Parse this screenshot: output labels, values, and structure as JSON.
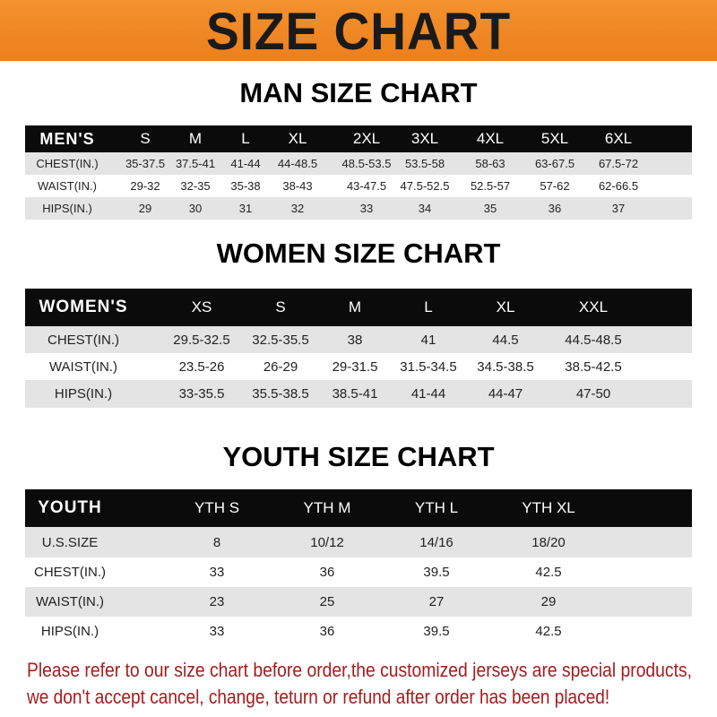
{
  "banner": {
    "title": "SIZE CHART",
    "color": "#ef8a25"
  },
  "men": {
    "title": "MAN SIZE CHART",
    "header": [
      "MEN'S",
      "S",
      "M",
      "L",
      "XL",
      "2XL",
      "3XL",
      "4XL",
      "5XL",
      "6XL"
    ],
    "rows": [
      [
        "CHEST(IN.)",
        "35-37.5",
        "37.5-41",
        "41-44",
        "44-48.5",
        "48.5-53.5",
        "53.5-58",
        "58-63",
        "63-67.5",
        "67.5-72"
      ],
      [
        "WAIST(IN.)",
        "29-32",
        "32-35",
        "35-38",
        "38-43",
        "43-47.5",
        "47.5-52.5",
        "52.5-57",
        "57-62",
        "62-66.5"
      ],
      [
        "HIPS(IN.)",
        "29",
        "30",
        "31",
        "32",
        "33",
        "34",
        "35",
        "36",
        "37"
      ]
    ]
  },
  "women": {
    "title": "WOMEN SIZE CHART",
    "header": [
      "WOMEN'S",
      "XS",
      "S",
      "M",
      "L",
      "XL",
      "XXL"
    ],
    "rows": [
      [
        "CHEST(IN.)",
        "29.5-32.5",
        "32.5-35.5",
        "38",
        "41",
        "44.5",
        "44.5-48.5"
      ],
      [
        "WAIST(IN.)",
        "23.5-26",
        "26-29",
        "29-31.5",
        "31.5-34.5",
        "34.5-38.5",
        "38.5-42.5"
      ],
      [
        "HIPS(IN.)",
        "33-35.5",
        "35.5-38.5",
        "38.5-41",
        "41-44",
        "44-47",
        "47-50"
      ]
    ]
  },
  "youth": {
    "title": "YOUTH SIZE CHART",
    "header": [
      "YOUTH",
      "YTH S",
      "YTH M",
      "YTH L",
      "YTH XL"
    ],
    "rows": [
      [
        "U.S.SIZE",
        "8",
        "10/12",
        "14/16",
        "18/20"
      ],
      [
        "CHEST(IN.)",
        "33",
        "36",
        "39.5",
        "42.5"
      ],
      [
        "WAIST(IN.)",
        "23",
        "25",
        "27",
        "29"
      ],
      [
        "HIPS(IN.)",
        "33",
        "36",
        "39.5",
        "42.5"
      ]
    ]
  },
  "notice": {
    "line1": "Please refer to our size chart before order,the customized jerseys are special products,",
    "line2": "we don't accept cancel, change, teturn or refund after order has been placed!",
    "color": "#a41d1d"
  }
}
